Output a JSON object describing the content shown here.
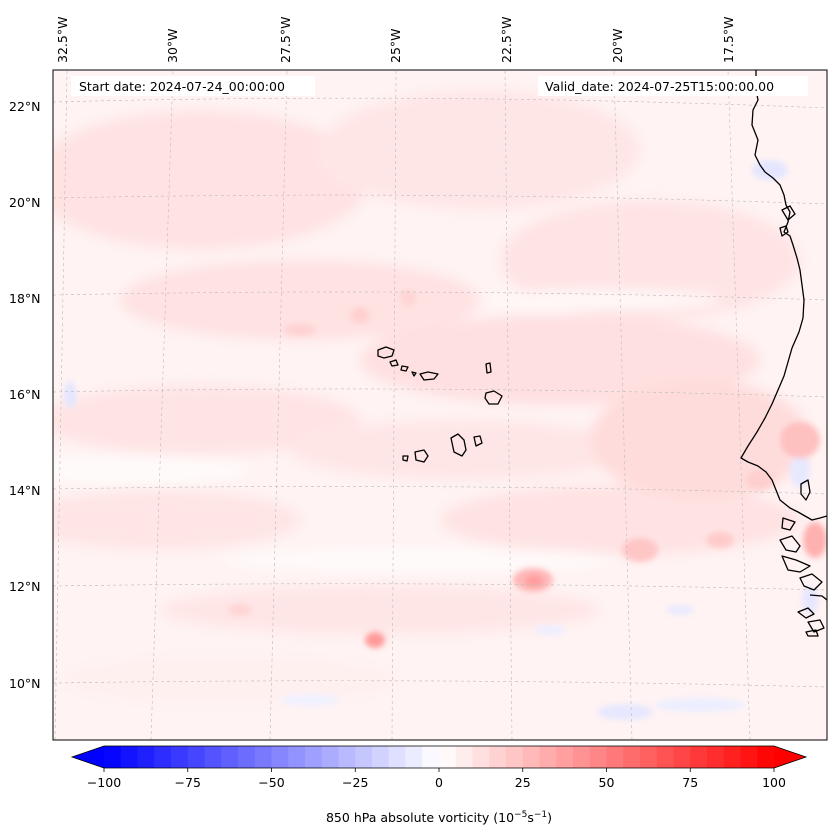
{
  "map": {
    "start_date_label": "Start date: 2024-07-24_00:00:00",
    "valid_date_label": "Valid_date: 2024-07-25T15:00:00.00",
    "lon_labels": [
      "32.5°W",
      "30°W",
      "27.5°W",
      "25°W",
      "22.5°W",
      "20°W",
      "17.5°W"
    ],
    "lat_labels": [
      "22°N",
      "20°N",
      "18°N",
      "16°N",
      "14°N",
      "12°N",
      "10°N"
    ],
    "field": "850 hPa absolute vorticity",
    "extent": {
      "lon_min": -33.0,
      "lon_max": -15.5,
      "lat_min": 9.0,
      "lat_max": 22.7
    },
    "features": [
      "coastline of West Africa",
      "Cape Verde Islands"
    ]
  },
  "colorbar": {
    "label_prefix": "850 hPa absolute vorticity (10",
    "label_exp1": "−5",
    "label_mid": "s",
    "label_exp2": "−1",
    "label_suffix": ")",
    "ticks": [
      "−100",
      "−75",
      "−50",
      "−25",
      "0",
      "25",
      "50",
      "75",
      "100"
    ],
    "vmin": -100,
    "vmax": 100,
    "step": 5,
    "colormap": "bwr",
    "extend": "both"
  },
  "colors": {
    "negative_end": "#0000ff",
    "positive_end": "#ff0000",
    "center": "#ffffff",
    "coastline": "#000000",
    "gridline": "#bbbbbb"
  }
}
